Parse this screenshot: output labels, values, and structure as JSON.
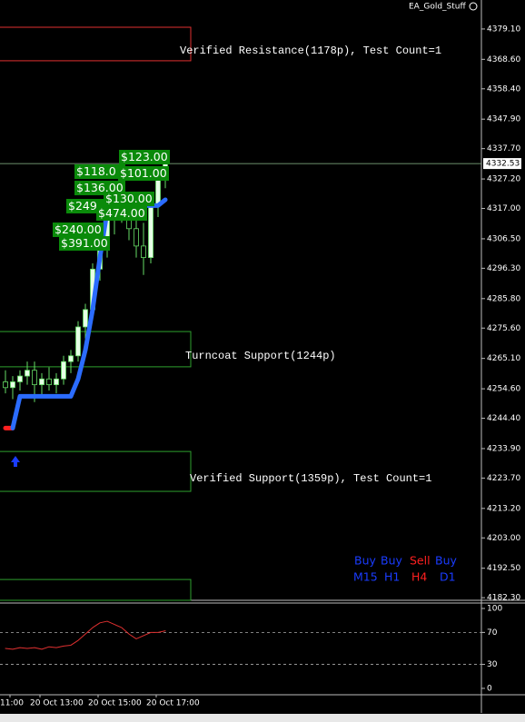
{
  "chart_data": {
    "type": "candlestick",
    "title": "EA_Gold_Stuff",
    "ylim": [
      4181.4,
      4388.5
    ],
    "yticks": [
      {
        "value": 4379.1,
        "label": "4379.10"
      },
      {
        "value": 4368.6,
        "label": "4368.60"
      },
      {
        "value": 4358.4,
        "label": "4358.40"
      },
      {
        "value": 4347.9,
        "label": "4347.90"
      },
      {
        "value": 4337.7,
        "label": "4337.70"
      },
      {
        "value": 4327.2,
        "label": "4327.20"
      },
      {
        "value": 4317,
        "label": "4317.00"
      },
      {
        "value": 4306.5,
        "label": "4306.50"
      },
      {
        "value": 4296.3,
        "label": "4296.30"
      },
      {
        "value": 4285.8,
        "label": "4285.80"
      },
      {
        "value": 4275.6,
        "label": "4275.60"
      },
      {
        "value": 4265.1,
        "label": "4265.10"
      },
      {
        "value": 4254.6,
        "label": "4254.60"
      },
      {
        "value": 4244.4,
        "label": "4244.40"
      },
      {
        "value": 4233.9,
        "label": "4233.90"
      },
      {
        "value": 4223.7,
        "label": "4223.70"
      },
      {
        "value": 4213.2,
        "label": "4213.20"
      },
      {
        "value": 4203,
        "label": "4203.00"
      },
      {
        "value": 4192.5,
        "label": "4192.50"
      },
      {
        "value": 4182.3,
        "label": "4182.30"
      }
    ],
    "xtick_labels": [
      "11:00",
      "20 Oct 13:00",
      "20 Oct 15:00",
      "20 Oct 17:00"
    ],
    "ohlc": [
      [
        4257,
        4261,
        4253,
        4255
      ],
      [
        4255,
        4259,
        4251,
        4257
      ],
      [
        4257,
        4261,
        4254,
        4259
      ],
      [
        4259,
        4264,
        4256,
        4261
      ],
      [
        4261,
        4264,
        4250,
        4256
      ],
      [
        4256,
        4260,
        4252,
        4258
      ],
      [
        4258,
        4262,
        4254,
        4256
      ],
      [
        4256,
        4260,
        4253,
        4258
      ],
      [
        4258,
        4266,
        4256,
        4264
      ],
      [
        4264,
        4268,
        4260,
        4266
      ],
      [
        4266,
        4278,
        4264,
        4276
      ],
      [
        4276,
        4284,
        4272,
        4282
      ],
      [
        4282,
        4298,
        4280,
        4296
      ],
      [
        4296,
        4312,
        4292,
        4306
      ],
      [
        4306,
        4320,
        4300,
        4316
      ],
      [
        4316,
        4322,
        4308,
        4318
      ],
      [
        4318,
        4324,
        4312,
        4320
      ],
      [
        4320,
        4322,
        4306,
        4310
      ],
      [
        4310,
        4318,
        4300,
        4304
      ],
      [
        4304,
        4312,
        4294,
        4300
      ],
      [
        4300,
        4320,
        4298,
        4318
      ],
      [
        4318,
        4330,
        4314,
        4328
      ],
      [
        4328,
        4334,
        4324,
        4332.53
      ]
    ],
    "up_color": "#e6ffe6",
    "down_color": "#000000",
    "wick_color": "#66dd66",
    "trend_down": {
      "color": "#ff2020",
      "values": [
        4241,
        4241,
        null,
        null,
        null,
        null,
        null,
        null,
        null,
        null,
        null,
        null,
        null,
        null,
        null,
        null,
        null,
        null,
        null,
        null,
        null,
        null,
        null
      ]
    },
    "trend_up": {
      "color": "#2b6cff",
      "values": [
        null,
        4241,
        4252,
        4252,
        4252,
        4252,
        4252,
        4252,
        4252,
        4252,
        4258,
        4268,
        4282,
        4300,
        4316,
        4318,
        4318,
        4318,
        4318,
        4318,
        4318,
        4318,
        4320
      ]
    },
    "last_price": 4332.53,
    "zones": [
      {
        "label": "Verified Resistance(1178p), Test Count=1",
        "top": 4379.7,
        "bottom": 4368.1,
        "color": "#e03030"
      },
      {
        "label": "Turncoat Support(1244p)",
        "top": 4274.4,
        "bottom": 4262.2,
        "color": "#2ea02e"
      },
      {
        "label": "Verified Support(1359p), Test Count=1",
        "top": 4232.9,
        "bottom": 4219.1,
        "color": "#2ea02e"
      },
      {
        "top": 4188.6,
        "bottom": 4181.4,
        "color": "#2ea02e"
      }
    ],
    "trade_labels": [
      "$123.00",
      "$118.0",
      "$101.00",
      "$136.00",
      "$249",
      "$130.00",
      "$474.00",
      "$240.00",
      "$391.00"
    ],
    "signals": [
      {
        "action": "Buy",
        "timeframe": "M15",
        "color": "#1a3cff"
      },
      {
        "action": "Buy",
        "timeframe": "H1",
        "color": "#1a3cff"
      },
      {
        "action": "Sell",
        "timeframe": "H4",
        "color": "#ff2020"
      },
      {
        "action": "Buy",
        "timeframe": "D1",
        "color": "#1a3cff"
      }
    ],
    "indicator": {
      "ylim": [
        -8,
        106.8
      ],
      "yticks": [
        100,
        70,
        30,
        0
      ],
      "levels": [
        70,
        30
      ],
      "color": "#e03030",
      "values": [
        50,
        49,
        51,
        50,
        51,
        49,
        52,
        51,
        53,
        54,
        60,
        68,
        76,
        82,
        84,
        80,
        76,
        68,
        62,
        66,
        70,
        70,
        72
      ]
    }
  }
}
